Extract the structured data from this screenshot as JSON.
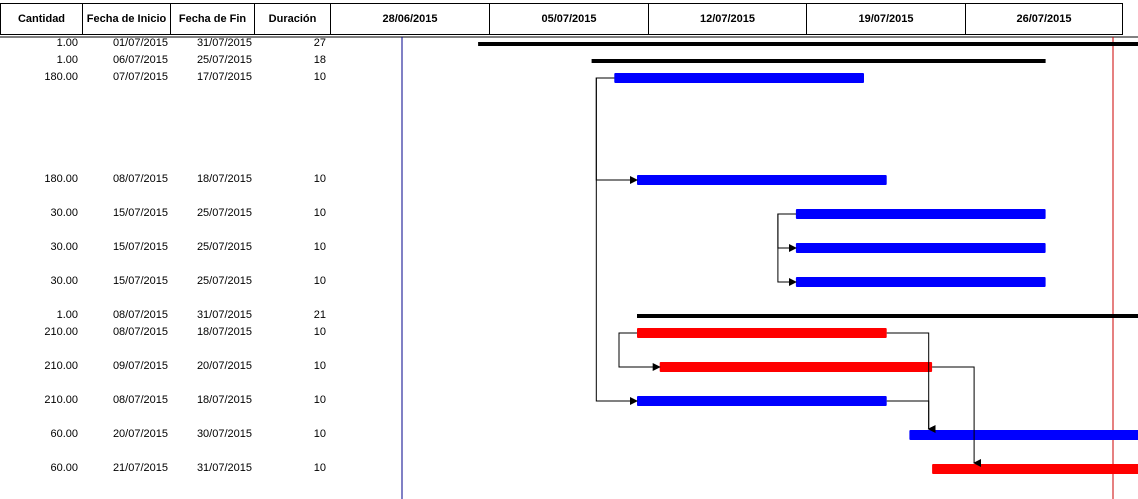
{
  "columns": {
    "cantidad": "Cantidad",
    "inicio": "Fecha de Inicio",
    "fin": "Fecha de Fin",
    "duracion": "Duración"
  },
  "timeline": {
    "weeks": [
      "28/06/2015",
      "05/07/2015",
      "12/07/2015",
      "19/07/2015",
      "26/07/2015"
    ],
    "timeline_start": "2015-06-25",
    "timeline_end": "2015-07-31"
  },
  "colors": {
    "summary": "#000000",
    "task": "#0000ff",
    "critical": "#ff0000",
    "today_line": "#00008b",
    "end_line": "#cc0000"
  },
  "tasks": [
    {
      "cantidad": "1.00",
      "inicio": "01/07/2015",
      "fin": "31/07/2015",
      "duracion": "27",
      "type": "summary"
    },
    {
      "cantidad": "1.00",
      "inicio": "06/07/2015",
      "fin": "25/07/2015",
      "duracion": "18",
      "type": "summary"
    },
    {
      "cantidad": "180.00",
      "inicio": "07/07/2015",
      "fin": "17/07/2015",
      "duracion": "10",
      "type": "task"
    },
    {
      "cantidad": "180.00",
      "inicio": "08/07/2015",
      "fin": "18/07/2015",
      "duracion": "10",
      "type": "task"
    },
    {
      "cantidad": "30.00",
      "inicio": "15/07/2015",
      "fin": "25/07/2015",
      "duracion": "10",
      "type": "task"
    },
    {
      "cantidad": "30.00",
      "inicio": "15/07/2015",
      "fin": "25/07/2015",
      "duracion": "10",
      "type": "task"
    },
    {
      "cantidad": "30.00",
      "inicio": "15/07/2015",
      "fin": "25/07/2015",
      "duracion": "10",
      "type": "task"
    },
    {
      "cantidad": "1.00",
      "inicio": "08/07/2015",
      "fin": "31/07/2015",
      "duracion": "21",
      "type": "summary"
    },
    {
      "cantidad": "210.00",
      "inicio": "08/07/2015",
      "fin": "18/07/2015",
      "duracion": "10",
      "type": "critical"
    },
    {
      "cantidad": "210.00",
      "inicio": "09/07/2015",
      "fin": "20/07/2015",
      "duracion": "10",
      "type": "critical"
    },
    {
      "cantidad": "210.00",
      "inicio": "08/07/2015",
      "fin": "18/07/2015",
      "duracion": "10",
      "type": "task"
    },
    {
      "cantidad": "60.00",
      "inicio": "20/07/2015",
      "fin": "30/07/2015",
      "duracion": "10",
      "type": "task"
    },
    {
      "cantidad": "60.00",
      "inicio": "21/07/2015",
      "fin": "31/07/2015",
      "duracion": "10",
      "type": "critical"
    }
  ],
  "dependencies": [
    [
      2,
      3
    ],
    [
      4,
      5
    ],
    [
      4,
      6
    ],
    [
      2,
      10
    ],
    [
      8,
      9
    ],
    [
      8,
      11
    ],
    [
      9,
      12
    ],
    [
      10,
      11
    ]
  ]
}
